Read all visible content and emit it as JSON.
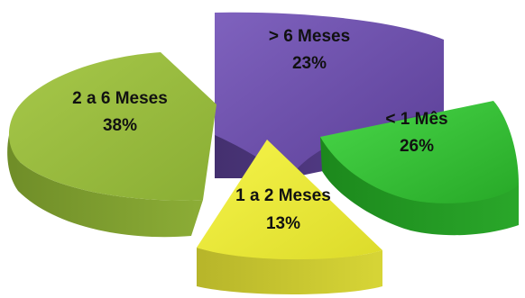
{
  "chart_data": {
    "type": "pie",
    "title": "",
    "labels": [
      "> 6 Meses",
      "< 1 Mês",
      "1 a 2 Meses",
      "2 a 6 Meses"
    ],
    "values": [
      23,
      26,
      13,
      38
    ],
    "value_labels": [
      "23%",
      "26%",
      "13%",
      "38%"
    ],
    "colors": [
      "#6a4ca8",
      "#2fbf2f",
      "#ecec36",
      "#9abb3e"
    ],
    "exploded": true,
    "three_d": true,
    "legend": "none"
  }
}
